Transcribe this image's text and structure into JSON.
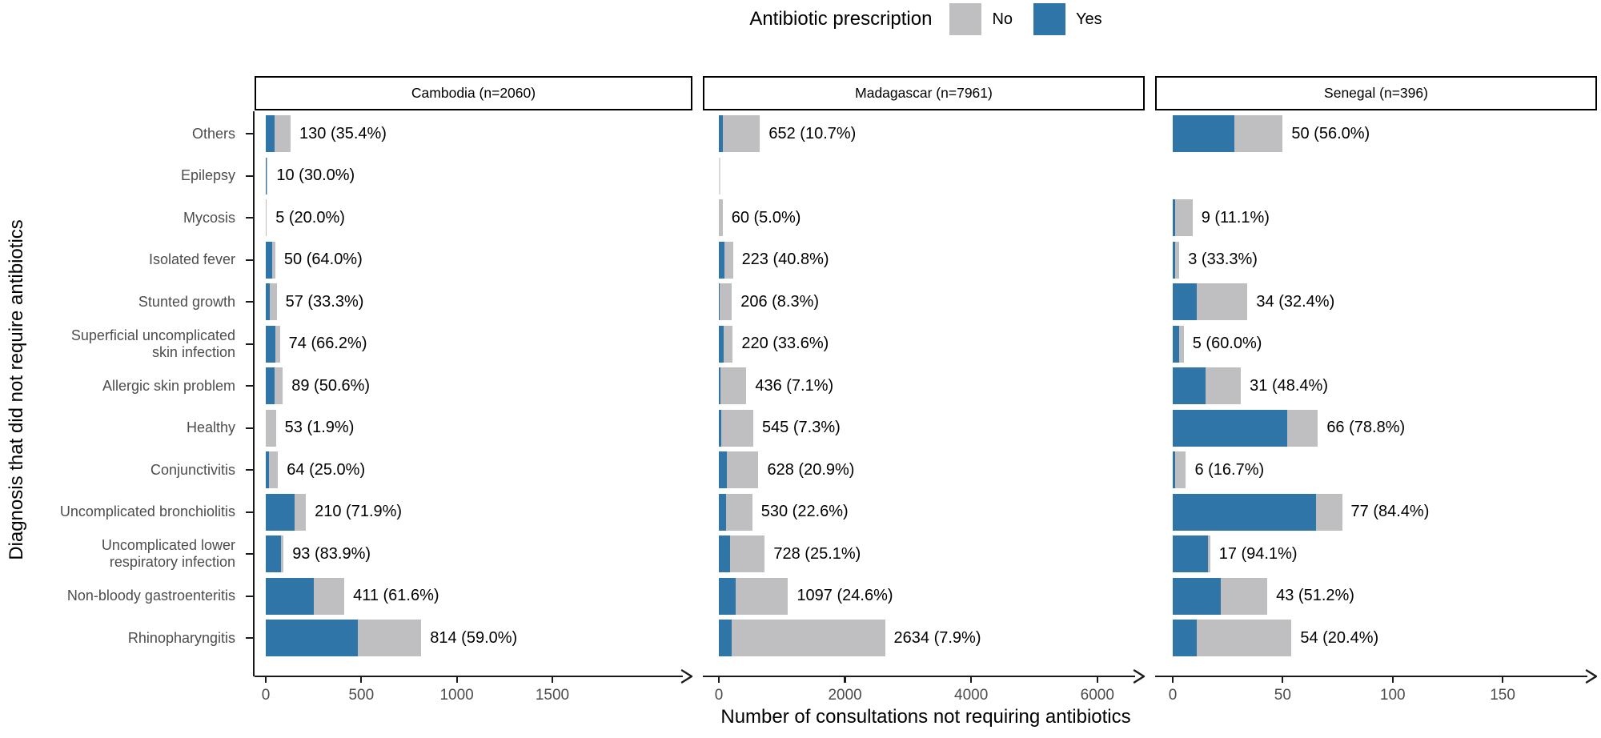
{
  "legend": {
    "title": "Antibiotic prescription",
    "items": [
      {
        "key": "no",
        "label": "No",
        "color": "#bfbfc1"
      },
      {
        "key": "yes",
        "label": "Yes",
        "color": "#2f75a7"
      }
    ]
  },
  "colors": {
    "no": "#bfbfc1",
    "yes": "#2f75a7",
    "sliver": "#d9d9db",
    "axis": "#1a1a1a",
    "tick_text": "#4d4d4d",
    "category_text": "#4d4d4d",
    "bar_label_text": "#000000"
  },
  "y_axis_title": "Diagnosis that did not require antibiotics",
  "x_axis_title": "Number of consultations not requiring antibiotics",
  "chart_data": {
    "type": "bar",
    "orientation": "horizontal",
    "stacked": true,
    "grid": false,
    "legend_position": "top",
    "series_meaning": "Each bar is split into 'Yes' (blue, left) and 'No' (grey, right) antibiotic prescription; label shows total n and (% Yes).",
    "categories": [
      "Others",
      "Epilepsy",
      "Mycosis",
      "Isolated fever",
      "Stunted growth",
      "Superficial uncomplicated skin infection",
      "Allergic skin problem",
      "Healthy",
      "Conjunctivitis",
      "Uncomplicated bronchiolitis",
      "Uncomplicated lower respiratory infection",
      "Non-bloody gastroenteritis",
      "Rhinopharyngitis"
    ],
    "panels": [
      {
        "title": "Cambodia (n=2060)",
        "x_ticks": [
          0,
          500,
          1000,
          1500
        ],
        "xlim": [
          0,
          2200
        ],
        "rows": [
          {
            "n": 130,
            "pct_yes": 35.4,
            "label": "130 (35.4%)"
          },
          {
            "n": 10,
            "pct_yes": 30.0,
            "label": "10 (30.0%)"
          },
          {
            "n": 5,
            "pct_yes": 20.0,
            "label": "5 (20.0%)"
          },
          {
            "n": 50,
            "pct_yes": 64.0,
            "label": "50 (64.0%)"
          },
          {
            "n": 57,
            "pct_yes": 33.3,
            "label": "57 (33.3%)"
          },
          {
            "n": 74,
            "pct_yes": 66.2,
            "label": "74 (66.2%)"
          },
          {
            "n": 89,
            "pct_yes": 50.6,
            "label": "89 (50.6%)"
          },
          {
            "n": 53,
            "pct_yes": 1.9,
            "label": "53 (1.9%)"
          },
          {
            "n": 64,
            "pct_yes": 25.0,
            "label": "64 (25.0%)"
          },
          {
            "n": 210,
            "pct_yes": 71.9,
            "label": "210 (71.9%)"
          },
          {
            "n": 93,
            "pct_yes": 83.9,
            "label": "93 (83.9%)"
          },
          {
            "n": 411,
            "pct_yes": 61.6,
            "label": "411 (61.6%)"
          },
          {
            "n": 814,
            "pct_yes": 59.0,
            "label": "814 (59.0%)"
          }
        ]
      },
      {
        "title": "Madagascar (n=7961)",
        "x_ticks": [
          0,
          2000,
          4000,
          6000
        ],
        "xlim": [
          0,
          6650
        ],
        "rows": [
          {
            "n": 652,
            "pct_yes": 10.7,
            "label": "652 (10.7%)"
          },
          {
            "n": null,
            "pct_yes": null,
            "label": "",
            "sliver": true
          },
          {
            "n": 60,
            "pct_yes": 5.0,
            "label": "60 (5.0%)"
          },
          {
            "n": 223,
            "pct_yes": 40.8,
            "label": "223 (40.8%)"
          },
          {
            "n": 206,
            "pct_yes": 8.3,
            "label": "206 (8.3%)"
          },
          {
            "n": 220,
            "pct_yes": 33.6,
            "label": "220 (33.6%)"
          },
          {
            "n": 436,
            "pct_yes": 7.1,
            "label": "436 (7.1%)"
          },
          {
            "n": 545,
            "pct_yes": 7.3,
            "label": "545 (7.3%)"
          },
          {
            "n": 628,
            "pct_yes": 20.9,
            "label": "628 (20.9%)"
          },
          {
            "n": 530,
            "pct_yes": 22.6,
            "label": "530 (22.6%)"
          },
          {
            "n": 728,
            "pct_yes": 25.1,
            "label": "728 (25.1%)"
          },
          {
            "n": 1097,
            "pct_yes": 24.6,
            "label": "1097 (24.6%)"
          },
          {
            "n": 2634,
            "pct_yes": 7.9,
            "label": "2634 (7.9%)"
          }
        ]
      },
      {
        "title": "Senegal (n=396)",
        "x_ticks": [
          0,
          50,
          100,
          150
        ],
        "xlim": [
          0,
          190
        ],
        "rows": [
          {
            "n": 50,
            "pct_yes": 56.0,
            "label": "50 (56.0%)"
          },
          {
            "n": null,
            "pct_yes": null,
            "label": ""
          },
          {
            "n": 9,
            "pct_yes": 11.1,
            "label": "9 (11.1%)"
          },
          {
            "n": 3,
            "pct_yes": 33.3,
            "label": "3 (33.3%)"
          },
          {
            "n": 34,
            "pct_yes": 32.4,
            "label": "34 (32.4%)"
          },
          {
            "n": 5,
            "pct_yes": 60.0,
            "label": "5 (60.0%)"
          },
          {
            "n": 31,
            "pct_yes": 48.4,
            "label": "31 (48.4%)"
          },
          {
            "n": 66,
            "pct_yes": 78.8,
            "label": "66 (78.8%)"
          },
          {
            "n": 6,
            "pct_yes": 16.7,
            "label": "6 (16.7%)"
          },
          {
            "n": 77,
            "pct_yes": 84.4,
            "label": "77 (84.4%)"
          },
          {
            "n": 17,
            "pct_yes": 94.1,
            "label": "17 (94.1%)"
          },
          {
            "n": 43,
            "pct_yes": 51.2,
            "label": "43 (51.2%)"
          },
          {
            "n": 54,
            "pct_yes": 20.4,
            "label": "54 (20.4%)"
          }
        ]
      }
    ]
  }
}
